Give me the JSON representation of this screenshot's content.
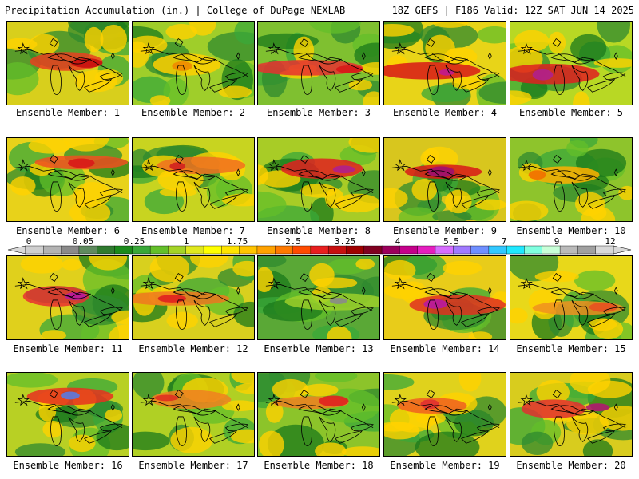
{
  "header": {
    "left": "Precipitation Accumulation (in.) | College of DuPage NEXLAB",
    "right": "18Z GEFS | F186 Valid: 12Z SAT JUN 14 2025"
  },
  "colorbar": {
    "tick_labels": [
      "0",
      "0.05",
      "0.25",
      "1",
      "1.75",
      "2.5",
      "3.25",
      "4",
      "5.5",
      "7",
      "9",
      "12"
    ],
    "colors": [
      "#cfcfcf",
      "#b3b3b3",
      "#8a8a8a",
      "#5f8a5f",
      "#2f7a2f",
      "#1b8a1b",
      "#39a839",
      "#63bf2a",
      "#a4d427",
      "#e0e81e",
      "#ffff00",
      "#ffe400",
      "#ffc400",
      "#ffa200",
      "#ff7a00",
      "#ff4b00",
      "#e81f1f",
      "#c81010",
      "#a00000",
      "#800020",
      "#9c005c",
      "#c4008a",
      "#e51ebf",
      "#d76eff",
      "#a07aff",
      "#6f8fff",
      "#32c8ff",
      "#1fe8ff",
      "#80ffe0",
      "#c8ffd8",
      "#bababa",
      "#a0a0a0",
      "#d9d9d9"
    ]
  },
  "members": [
    {
      "label": "Ensemble Member: 1",
      "base": "#d8cf1c",
      "hot": "#e84020",
      "hot2": "#c81010"
    },
    {
      "label": "Ensemble Member: 2",
      "base": "#9fce2a",
      "hot": "#ffd000",
      "hot2": "#f08a00"
    },
    {
      "label": "Ensemble Member: 3",
      "base": "#7fc030",
      "hot": "#e83030",
      "hot2": "#d81818"
    },
    {
      "label": "Ensemble Member: 4",
      "base": "#e8d418",
      "hot": "#d81818",
      "hot2": "#c01890"
    },
    {
      "label": "Ensemble Member: 5",
      "base": "#b8d824",
      "hot": "#e02020",
      "hot2": "#b0208c"
    },
    {
      "label": "Ensemble Member: 6",
      "base": "#e8d21a",
      "hot": "#f05020",
      "hot2": "#d81818"
    },
    {
      "label": "Ensemble Member: 7",
      "base": "#c8d420",
      "hot": "#f07020",
      "hot2": "#d02020"
    },
    {
      "label": "Ensemble Member: 8",
      "base": "#a8cc26",
      "hot": "#e02020",
      "hot2": "#b0208c"
    },
    {
      "label": "Ensemble Member: 9",
      "base": "#d8c61e",
      "hot": "#d81818",
      "hot2": "#a01070"
    },
    {
      "label": "Ensemble Member: 10",
      "base": "#8ec42c",
      "hot": "#ffb000",
      "hot2": "#f07000"
    },
    {
      "label": "Ensemble Member: 11",
      "base": "#e0d01c",
      "hot": "#e83030",
      "hot2": "#b818a0"
    },
    {
      "label": "Ensemble Member: 12",
      "base": "#d8d01e",
      "hot": "#f07820",
      "hot2": "#e02020"
    },
    {
      "label": "Ensemble Member: 13",
      "base": "#5aa836",
      "hot": "#9cd02a",
      "hot2": "#8a8a8a"
    },
    {
      "label": "Ensemble Member: 14",
      "base": "#e8cc1a",
      "hot": "#e03020",
      "hot2": "#b818a0"
    },
    {
      "label": "Ensemble Member: 15",
      "base": "#e8d81a",
      "hot": "#f09020",
      "hot2": "#e85020"
    },
    {
      "label": "Ensemble Member: 16",
      "base": "#b8d024",
      "hot": "#e83020",
      "hot2": "#5a7ae0"
    },
    {
      "label": "Ensemble Member: 17",
      "base": "#b0d024",
      "hot": "#f08020",
      "hot2": "#e03020"
    },
    {
      "label": "Ensemble Member: 18",
      "base": "#8cc42a",
      "hot": "#f08020",
      "hot2": "#e02020"
    },
    {
      "label": "Ensemble Member: 19",
      "base": "#e0d21c",
      "hot": "#f06020",
      "hot2": "#e03030"
    },
    {
      "label": "Ensemble Member: 20",
      "base": "#d8cc1e",
      "hot": "#e03030",
      "hot2": "#b01870"
    }
  ]
}
